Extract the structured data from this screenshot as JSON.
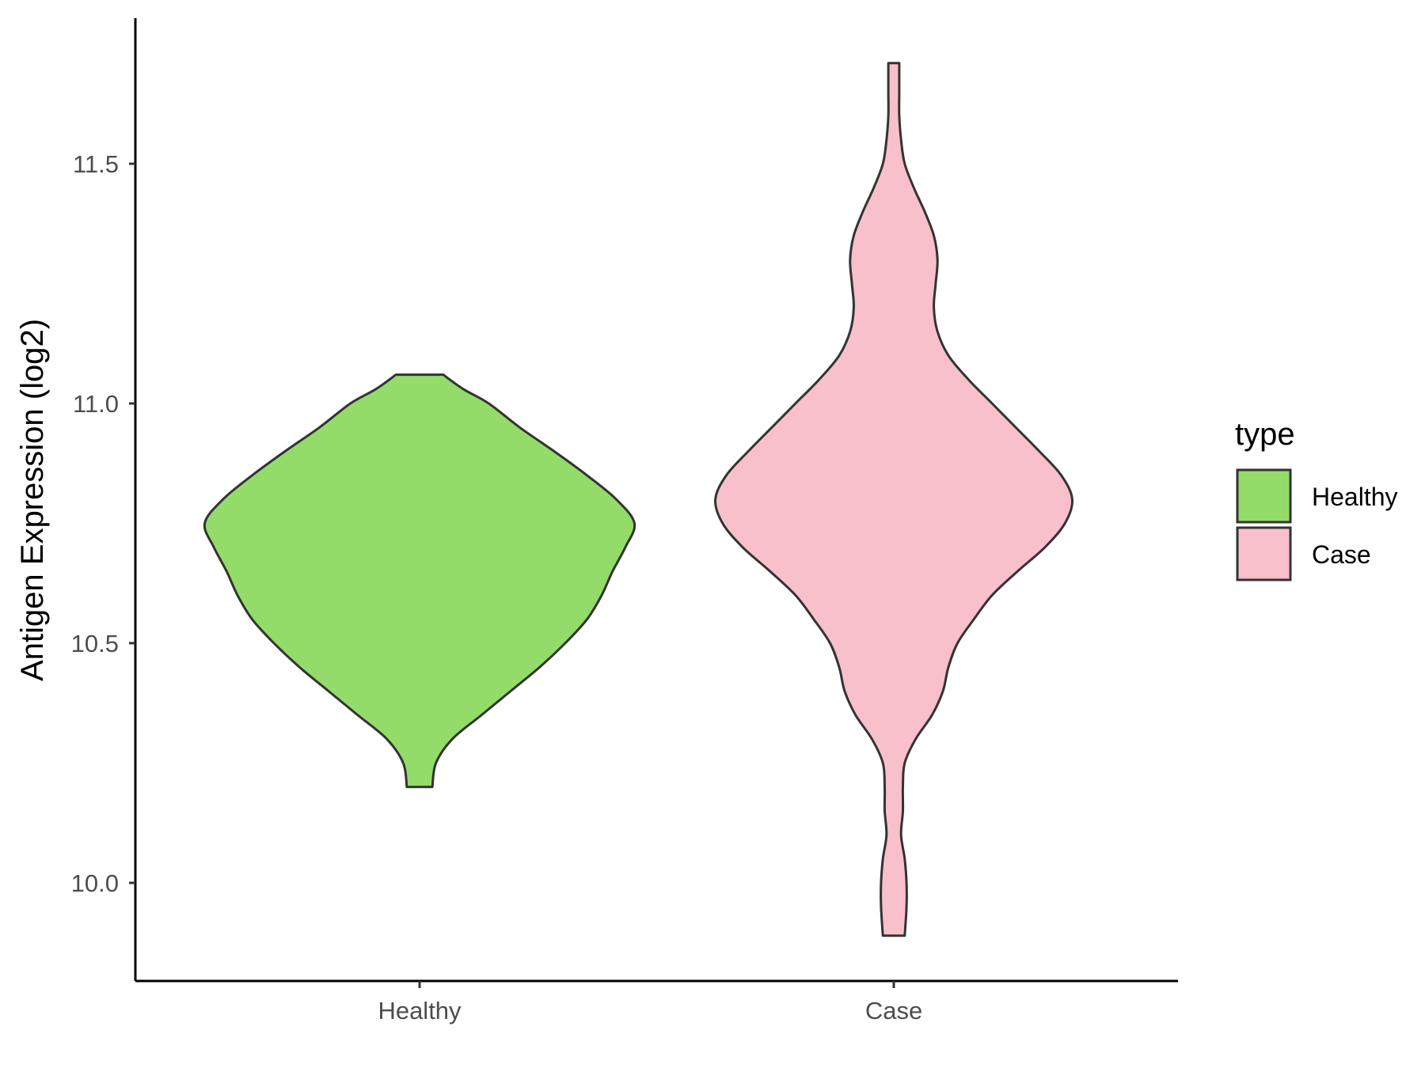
{
  "chart_data": {
    "type": "violin",
    "title": "",
    "xlabel": "",
    "ylabel": "Antigen Expression (log2)",
    "ylim": [
      9.8,
      11.8
    ],
    "yticks": [
      "10.0",
      "10.5",
      "11.0",
      "11.5"
    ],
    "categories": [
      "Healthy",
      "Case"
    ],
    "legend": {
      "title": "type",
      "position": "right",
      "entries": [
        {
          "label": "Healthy",
          "color": "#93DC6A"
        },
        {
          "label": "Case",
          "color": "#F7C0CB"
        }
      ]
    },
    "series": [
      {
        "name": "Healthy",
        "color": "#93DC6A",
        "min": 10.2,
        "max": 11.06,
        "density": [
          [
            10.2,
            0.07
          ],
          [
            10.25,
            0.09
          ],
          [
            10.3,
            0.18
          ],
          [
            10.35,
            0.34
          ],
          [
            10.4,
            0.5
          ],
          [
            10.45,
            0.66
          ],
          [
            10.5,
            0.8
          ],
          [
            10.55,
            0.92
          ],
          [
            10.6,
            1.0
          ],
          [
            10.65,
            1.06
          ],
          [
            10.7,
            1.13
          ],
          [
            10.75,
            1.18
          ],
          [
            10.8,
            1.08
          ],
          [
            10.85,
            0.92
          ],
          [
            10.9,
            0.74
          ],
          [
            10.95,
            0.55
          ],
          [
            11.0,
            0.38
          ],
          [
            11.03,
            0.24
          ],
          [
            11.06,
            0.13
          ]
        ]
      },
      {
        "name": "Case",
        "color": "#F7C0CB",
        "min": 9.89,
        "max": 11.71,
        "density": [
          [
            9.89,
            0.06
          ],
          [
            9.95,
            0.07
          ],
          [
            10.0,
            0.07
          ],
          [
            10.05,
            0.06
          ],
          [
            10.1,
            0.04
          ],
          [
            10.15,
            0.05
          ],
          [
            10.2,
            0.05
          ],
          [
            10.25,
            0.06
          ],
          [
            10.3,
            0.12
          ],
          [
            10.35,
            0.21
          ],
          [
            10.4,
            0.27
          ],
          [
            10.45,
            0.3
          ],
          [
            10.5,
            0.35
          ],
          [
            10.55,
            0.44
          ],
          [
            10.6,
            0.54
          ],
          [
            10.65,
            0.68
          ],
          [
            10.7,
            0.83
          ],
          [
            10.75,
            0.94
          ],
          [
            10.8,
            0.98
          ],
          [
            10.85,
            0.92
          ],
          [
            10.9,
            0.8
          ],
          [
            10.95,
            0.67
          ],
          [
            11.0,
            0.54
          ],
          [
            11.05,
            0.41
          ],
          [
            11.1,
            0.3
          ],
          [
            11.15,
            0.24
          ],
          [
            11.2,
            0.22
          ],
          [
            11.25,
            0.23
          ],
          [
            11.3,
            0.24
          ],
          [
            11.35,
            0.22
          ],
          [
            11.4,
            0.17
          ],
          [
            11.45,
            0.11
          ],
          [
            11.5,
            0.06
          ],
          [
            11.55,
            0.04
          ],
          [
            11.6,
            0.03
          ],
          [
            11.65,
            0.03
          ],
          [
            11.71,
            0.03
          ]
        ]
      }
    ]
  }
}
